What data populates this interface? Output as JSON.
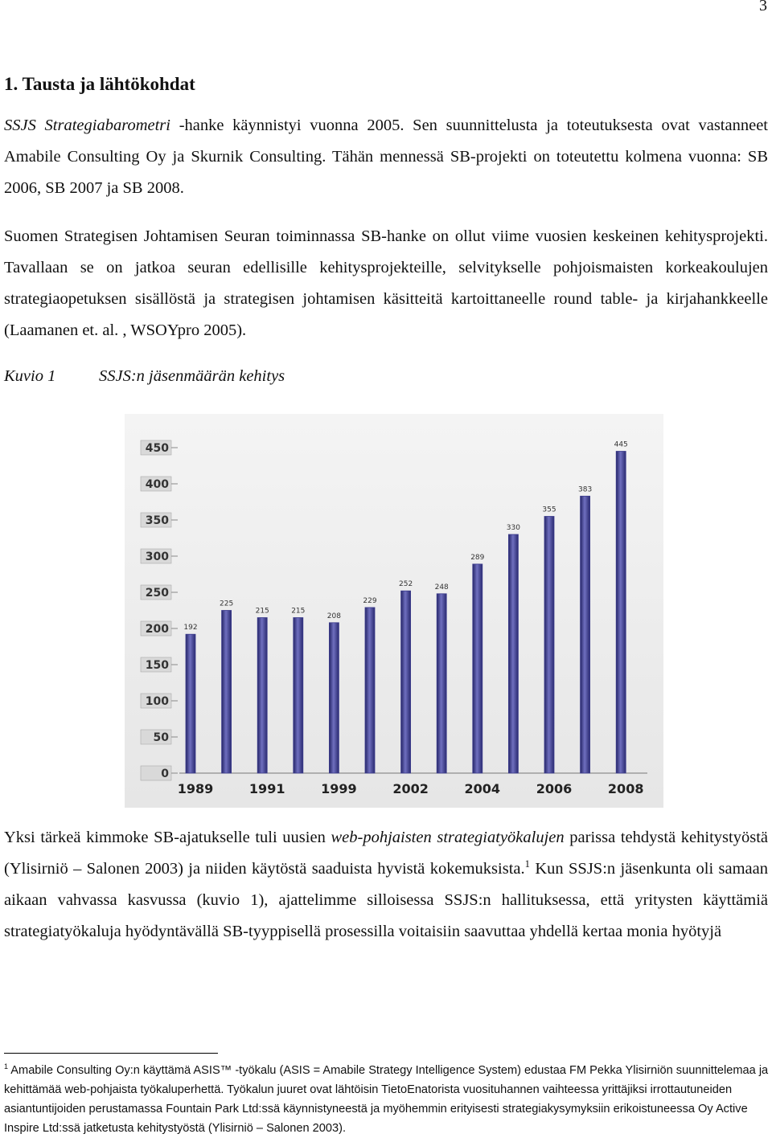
{
  "page_number": "3",
  "heading": "1. Tausta ja lähtökohdat",
  "paragraphs": [
    {
      "runs": [
        "SSJS Strategiabarometri",
        "-hanke käynnistyi vuonna 2005. Sen suunnittelusta ja toteutuksesta ovat vastanneet Amabile Consulting Oy ja Skurnik Consulting. Tähän mennessä SB-projekti on toteutettu kolmena vuonna: SB 2006, SB 2007 ja SB 2008."
      ]
    },
    {
      "runs": [
        "Suomen Strategisen Johtamisen Seuran toiminnassa SB-hanke on ollut viime vuosien keskeinen kehitysprojekti. Tavallaan se on jatkoa seuran edellisille kehitysprojekteille, selvitykselle pohjoismaisten korkeakoulujen strategiaopetuksen sisällöstä ja strategisen johtamisen käsitteitä kartoittaneelle round table- ja kirjahankkeelle (Laamanen et. al. , WSOYpro 2005)."
      ]
    },
    {
      "runs": [
        "Yksi tärkeä kimmoke SB-ajatukselle tuli uusien",
        "web-pohjaisten strategiatyökalujen",
        "parissa tehdystä kehitystyöstä (Ylisirniö – Salonen 2003) ja niiden käytöstä saaduista hyvistä kokemuksista.",
        "1",
        "Kun SSJS:n jäsenkunta oli samaan aikaan vahvassa kasvussa (kuvio 1), ajattelimme silloisessa SSJS:n hallituksessa, että yritysten käyttämiä strategiatyökaluja hyödyntävällä SB-tyyppisellä prosessilla voitaisiin saavuttaa yhdellä kertaa monia hyötyjä"
      ]
    }
  ],
  "figure": {
    "label": "Kuvio 1",
    "caption": "SSJS:n jäsenmäärän kehitys"
  },
  "chart_data": {
    "type": "bar",
    "categories": [
      "1989",
      null,
      "1991",
      null,
      "1999",
      null,
      "2002",
      null,
      "2004",
      null,
      "2006",
      null,
      "2008"
    ],
    "values": [
      192,
      225,
      215,
      215,
      208,
      229,
      252,
      248,
      289,
      330,
      355,
      383,
      445
    ],
    "color": "#3b3b8c",
    "ylim": [
      0,
      450
    ],
    "yticks": [
      0,
      50,
      100,
      150,
      200,
      250,
      300,
      350,
      400,
      450
    ],
    "grid": false
  },
  "footnote": {
    "marker": "1",
    "text": "Amabile Consulting Oy:n käyttämä ASIS™ -työkalu (ASIS = Amabile Strategy Intelligence System) edustaa FM Pekka Ylisirniön suunnittelemaa ja kehittämää web-pohjaista työkaluperhettä. Työkalun juuret ovat lähtöisin TietoEnatorista vuosituhannen vaihteessa yrittäjiksi irrottautuneiden asiantuntijoiden perustamassa Fountain Park Ltd:ssä käynnistyneestä ja myöhemmin erityisesti strategiakysymyksiin erikoistuneessa Oy Active Inspire Ltd:ssä jatketusta kehitystyöstä (Ylisirniö – Salonen 2003)."
  }
}
